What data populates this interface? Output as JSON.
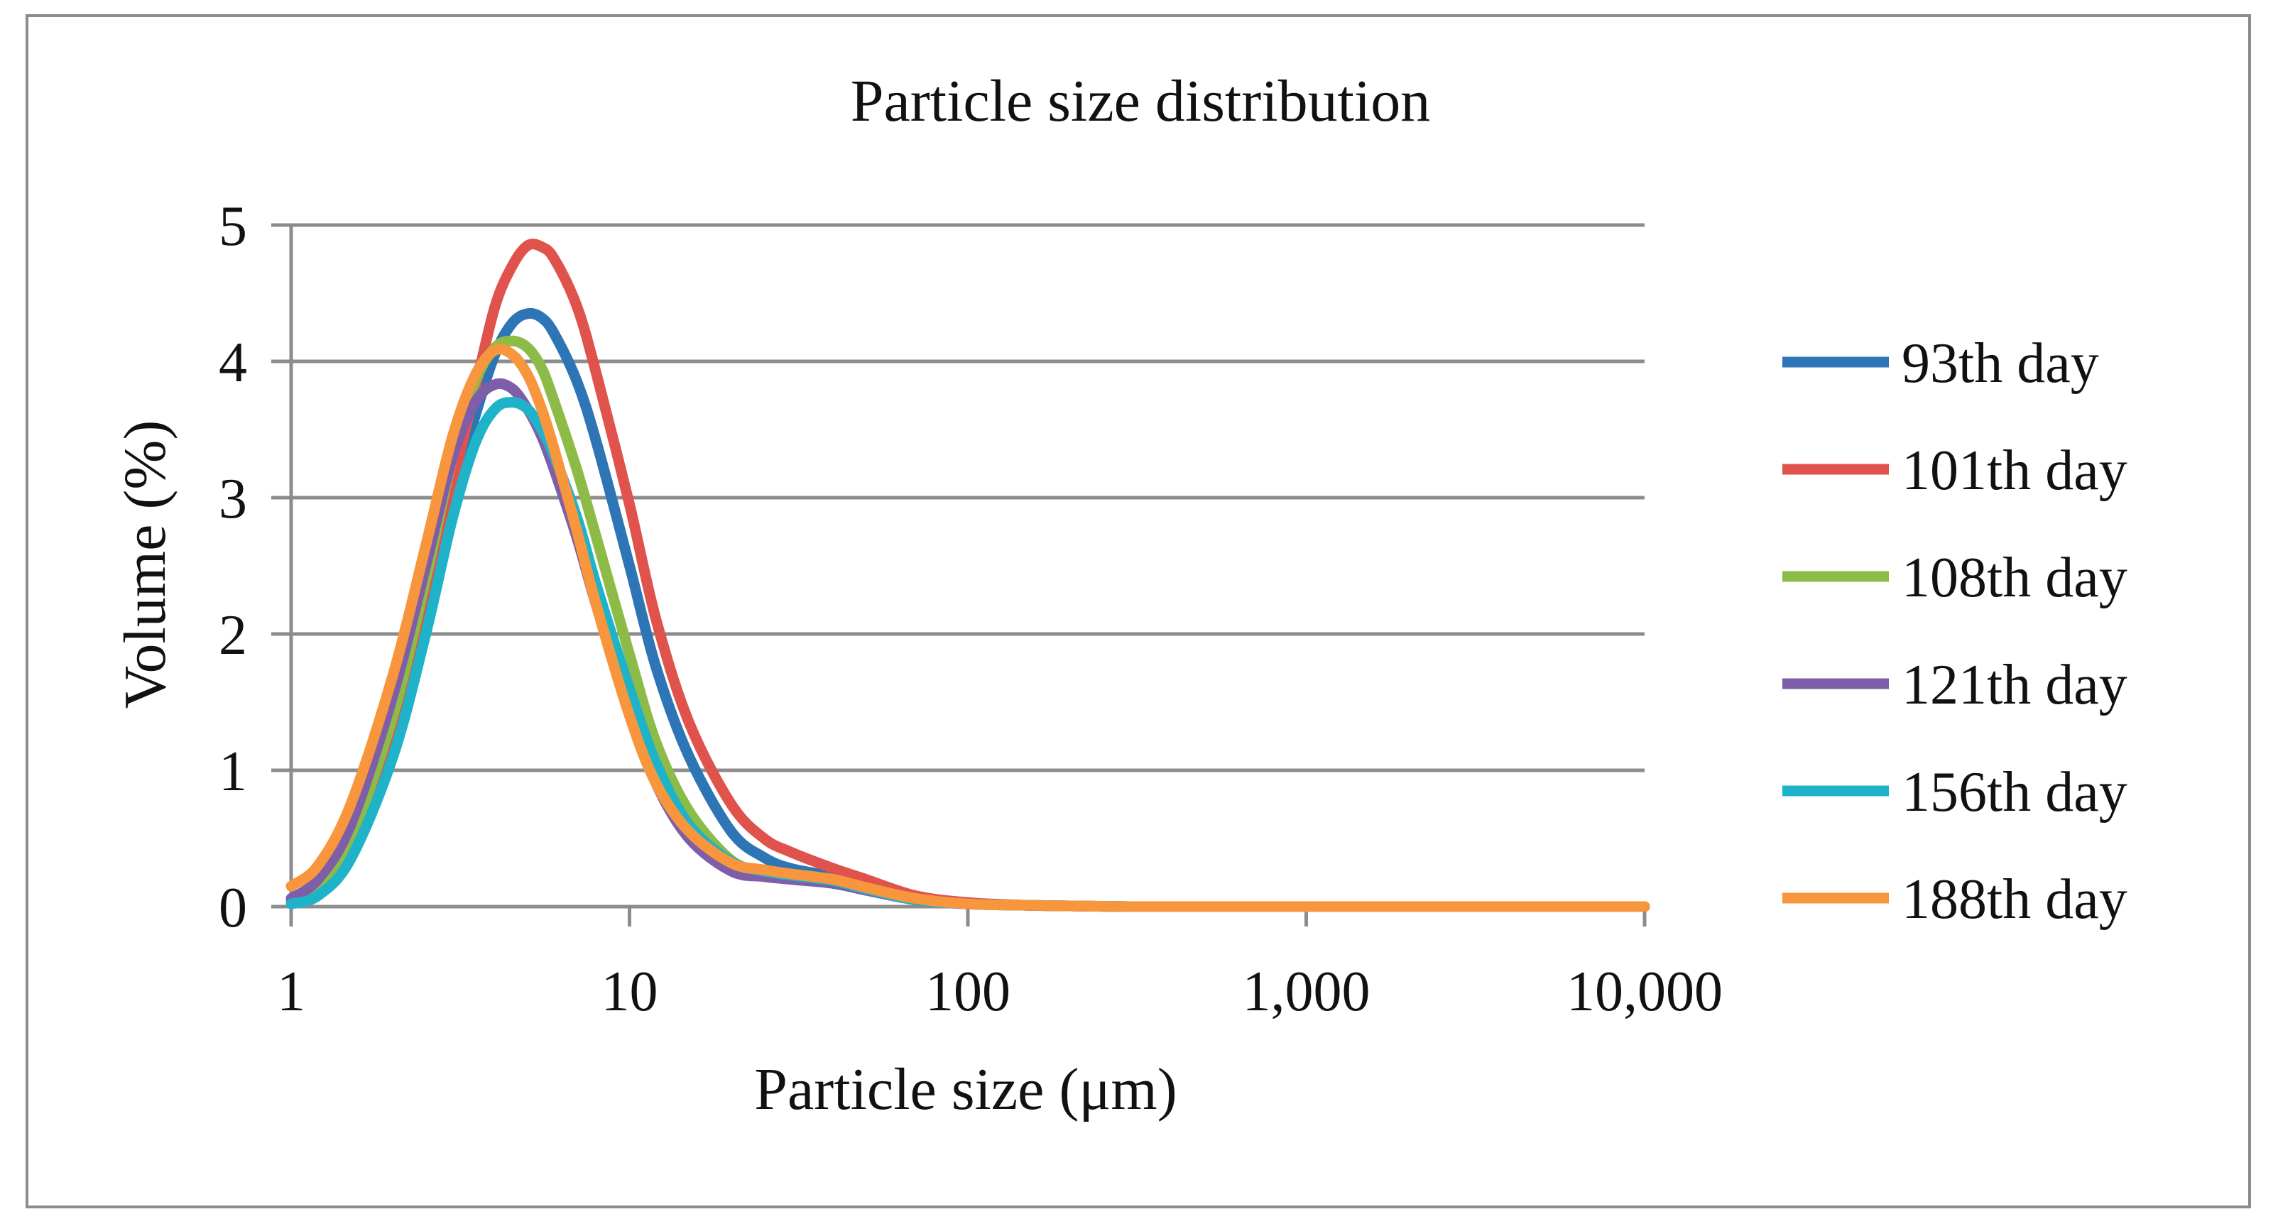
{
  "chart_data": {
    "type": "line",
    "title": "Particle size distribution",
    "xlabel": "Particle size (μm)",
    "ylabel": "Volume (%)",
    "x_scale": "log",
    "xlim": [
      1,
      10000
    ],
    "ylim": [
      0,
      5
    ],
    "x_ticks": [
      1,
      10,
      100,
      1000,
      10000
    ],
    "x_tick_labels": [
      "1",
      "10",
      "100",
      "1,000",
      "10,000"
    ],
    "y_ticks": [
      0,
      1,
      2,
      3,
      4,
      5
    ],
    "y_tick_labels": [
      "0",
      "1",
      "2",
      "3",
      "4",
      "5"
    ],
    "grid": "horizontal",
    "legend_position": "right",
    "series": [
      {
        "name": "93th day",
        "color": "#2e75b6",
        "x": [
          1,
          1.2,
          1.5,
          2,
          2.5,
          3,
          3.5,
          4,
          4.5,
          5,
          5.5,
          6,
          7,
          8,
          10,
          12,
          15,
          20,
          25,
          30,
          40,
          50,
          70,
          100,
          150,
          200,
          300,
          500,
          1000,
          10000
        ],
        "y": [
          0.03,
          0.1,
          0.4,
          1.2,
          2.1,
          3.0,
          3.6,
          4.05,
          4.28,
          4.35,
          4.32,
          4.2,
          3.85,
          3.4,
          2.5,
          1.75,
          1.1,
          0.55,
          0.36,
          0.28,
          0.22,
          0.15,
          0.06,
          0.02,
          0.01,
          0.005,
          0,
          0,
          0,
          0
        ]
      },
      {
        "name": "101th day",
        "color": "#e0534d",
        "x": [
          1,
          1.2,
          1.5,
          2,
          2.5,
          3,
          3.5,
          4,
          4.5,
          5,
          5.5,
          6,
          7,
          8,
          10,
          12,
          15,
          20,
          25,
          30,
          40,
          50,
          70,
          100,
          150,
          200,
          300,
          500,
          1000,
          10000
        ],
        "y": [
          0.03,
          0.1,
          0.4,
          1.2,
          2.2,
          3.1,
          3.8,
          4.4,
          4.7,
          4.85,
          4.84,
          4.75,
          4.4,
          3.9,
          2.95,
          2.1,
          1.35,
          0.75,
          0.5,
          0.4,
          0.28,
          0.2,
          0.08,
          0.03,
          0.01,
          0.005,
          0,
          0,
          0,
          0
        ]
      },
      {
        "name": "108th day",
        "color": "#8dbb47",
        "x": [
          1,
          1.2,
          1.5,
          2,
          2.5,
          3,
          3.5,
          4,
          4.5,
          5,
          5.5,
          6,
          7,
          8,
          10,
          12,
          15,
          20,
          25,
          30,
          40,
          50,
          70,
          100,
          150,
          200,
          300,
          500,
          1000,
          10000
        ],
        "y": [
          0.05,
          0.15,
          0.5,
          1.4,
          2.4,
          3.3,
          3.85,
          4.1,
          4.15,
          4.1,
          3.95,
          3.7,
          3.2,
          2.7,
          1.85,
          1.2,
          0.7,
          0.34,
          0.26,
          0.22,
          0.18,
          0.13,
          0.06,
          0.02,
          0.01,
          0.005,
          0,
          0,
          0,
          0
        ]
      },
      {
        "name": "121th day",
        "color": "#7e5ea8",
        "x": [
          1,
          1.2,
          1.5,
          2,
          2.5,
          3,
          3.5,
          4,
          4.5,
          5,
          5.5,
          6,
          7,
          8,
          10,
          12,
          15,
          20,
          25,
          30,
          40,
          50,
          70,
          100,
          150,
          200,
          300,
          500,
          1000,
          10000
        ],
        "y": [
          0.06,
          0.2,
          0.6,
          1.55,
          2.5,
          3.3,
          3.7,
          3.83,
          3.8,
          3.65,
          3.45,
          3.2,
          2.7,
          2.2,
          1.45,
          0.9,
          0.5,
          0.26,
          0.22,
          0.2,
          0.17,
          0.12,
          0.05,
          0.02,
          0.01,
          0.005,
          0,
          0,
          0,
          0
        ]
      },
      {
        "name": "156th day",
        "color": "#1fb3c9",
        "x": [
          1,
          1.2,
          1.5,
          2,
          2.5,
          3,
          3.5,
          4,
          4.5,
          5,
          5.5,
          6,
          7,
          8,
          10,
          12,
          15,
          20,
          25,
          30,
          40,
          50,
          70,
          100,
          150,
          200,
          300,
          500,
          1000,
          10000
        ],
        "y": [
          0.02,
          0.08,
          0.35,
          1.1,
          2.0,
          2.85,
          3.4,
          3.65,
          3.7,
          3.65,
          3.5,
          3.3,
          2.85,
          2.35,
          1.6,
          1.05,
          0.6,
          0.33,
          0.26,
          0.23,
          0.19,
          0.13,
          0.05,
          0.02,
          0.01,
          0.005,
          0,
          0,
          0,
          0
        ]
      },
      {
        "name": "188th day",
        "color": "#f7963c",
        "x": [
          1,
          1.2,
          1.5,
          2,
          2.5,
          3,
          3.5,
          4,
          4.5,
          5,
          5.5,
          6,
          7,
          8,
          10,
          12,
          15,
          20,
          25,
          30,
          40,
          50,
          70,
          100,
          150,
          200,
          300,
          500,
          1000,
          10000
        ],
        "y": [
          0.15,
          0.3,
          0.75,
          1.7,
          2.65,
          3.45,
          3.9,
          4.08,
          4.05,
          3.9,
          3.65,
          3.35,
          2.75,
          2.2,
          1.4,
          0.9,
          0.55,
          0.32,
          0.27,
          0.24,
          0.2,
          0.14,
          0.06,
          0.02,
          0.01,
          0.005,
          0,
          0,
          0,
          0
        ]
      }
    ]
  }
}
